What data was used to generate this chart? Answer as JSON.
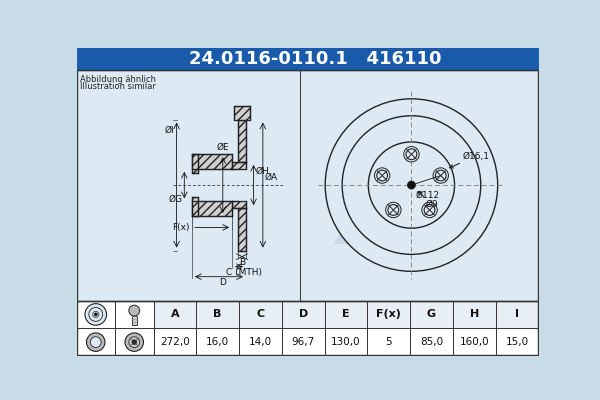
{
  "part_number": "24.0116-0110.1",
  "oem_number": "416110",
  "title_bg_color": "#1a5aaa",
  "title_text_color": "#ffffff",
  "bg_color": "#c8dce8",
  "drawing_bg_color": "#c8dce8",
  "table_bg_color": "#ffffff",
  "border_color": "#222222",
  "note_text": [
    "Abbildung ähnlich",
    "Illustration similar"
  ],
  "dimensions_labels": [
    "A",
    "B",
    "C",
    "D",
    "E",
    "F(x)",
    "G",
    "H",
    "I"
  ],
  "dimensions_values": [
    "272,0",
    "16,0",
    "14,0",
    "96,7",
    "130,0",
    "5",
    "85,0",
    "160,0",
    "15,0"
  ],
  "circle_dim1": "Ø16,1",
  "circle_dim2": "Ø112",
  "circle_dim3": "Ø9"
}
